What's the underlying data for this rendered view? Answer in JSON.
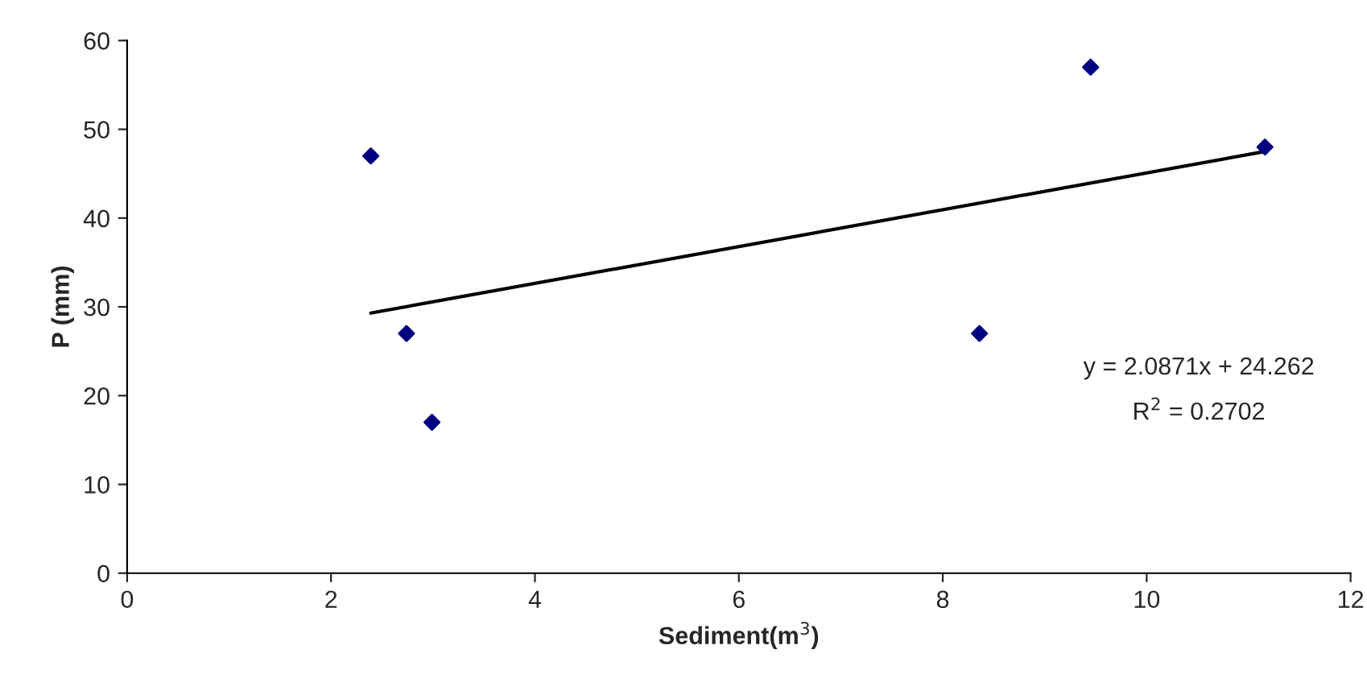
{
  "chart_data": {
    "type": "scatter",
    "xlabel": "Sediment(m$^{3}$)",
    "ylabel": "P (mm)",
    "xlim": [
      0,
      12
    ],
    "xticks": [
      0,
      2,
      4,
      6,
      8,
      10,
      12
    ],
    "ylim": [
      0,
      60
    ],
    "yticks": [
      0,
      10,
      20,
      30,
      40,
      50,
      60
    ],
    "grid": false,
    "legend": false,
    "marker": "diamond",
    "series": [
      {
        "color": "#000080",
        "x": [
          2.39,
          2.74,
          2.99,
          8.36,
          9.45,
          11.16
        ],
        "values": [
          47,
          27,
          17,
          27,
          57,
          48
        ]
      },
      {
        "type": "line",
        "color": "#000000",
        "line_style": "solid",
        "marker": "none",
        "x": [
          2.39,
          11.16
        ],
        "values": [
          29.3,
          47.5
        ]
      }
    ],
    "annotations": [
      "y = 2.0871x + 24.262",
      "R$^{2}$ = 0.2702"
    ]
  }
}
